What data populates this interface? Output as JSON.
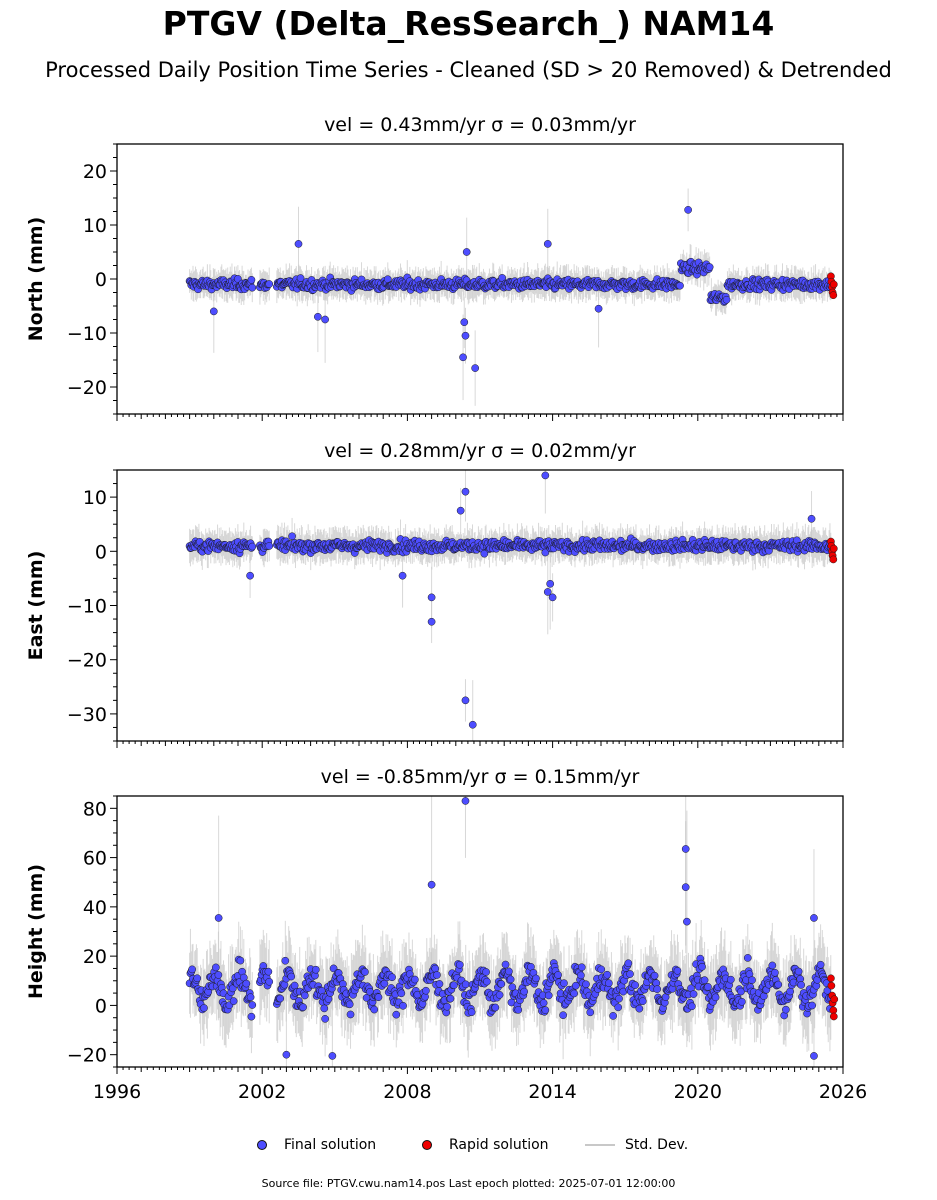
{
  "title": "PTGV (Delta_ResSearch_) NAM14",
  "subtitle": "Processed Daily Position Time Series - Cleaned (SD > 20 Removed) & Detrended",
  "legend": {
    "final": "Final solution",
    "rapid": "Rapid solution",
    "std": "Std. Dev."
  },
  "source": "Source file: PTGV.cwu.nam14.pos  Last epoch plotted: 2025-07-01 12:00:00",
  "colors": {
    "final": "#4d4dff",
    "rapid": "#ee0000",
    "std": "#c8c8c8",
    "edge": "#1a1a1a"
  },
  "chart_data": [
    {
      "type": "scatter",
      "panel": "north",
      "title": "vel = 0.43mm/yr   σ = 0.03mm/yr",
      "ylabel": "North (mm)",
      "xlim": [
        1996,
        2026
      ],
      "ylim": [
        -25,
        25
      ],
      "yticks": [
        -20,
        -10,
        0,
        10,
        20
      ],
      "xticks": [
        1996,
        2002,
        2008,
        2014,
        2020,
        2026
      ],
      "data_span": [
        1999.0,
        2025.5
      ],
      "level_segments": [
        {
          "from": 1999.0,
          "to": 2019.3,
          "mean": -1.0
        },
        {
          "from": 2019.3,
          "to": 2020.5,
          "mean": 2.0
        },
        {
          "from": 2020.5,
          "to": 2021.2,
          "mean": -3.5
        },
        {
          "from": 2021.2,
          "to": 2025.5,
          "mean": -1.0
        }
      ],
      "noise": 1.2,
      "outliers": [
        [
          2003.5,
          6.5
        ],
        [
          2004.6,
          -7.5
        ],
        [
          2004.3,
          -7
        ],
        [
          2010.3,
          -14.5
        ],
        [
          2010.4,
          -10.5
        ],
        [
          2010.35,
          -8
        ],
        [
          2010.45,
          5
        ],
        [
          2010.8,
          -16.5
        ],
        [
          2013.8,
          6.5
        ],
        [
          2019.6,
          12.8
        ],
        [
          2015.9,
          -5.5
        ],
        [
          2000.0,
          -6
        ]
      ],
      "rapid": [
        [
          2025.5,
          0.5
        ],
        [
          2025.52,
          -0.5
        ],
        [
          2025.55,
          -1.5
        ],
        [
          2025.57,
          -2.5
        ],
        [
          2025.6,
          -3
        ],
        [
          2025.62,
          -1
        ]
      ]
    },
    {
      "type": "scatter",
      "panel": "east",
      "title": "vel = 0.28mm/yr   σ = 0.02mm/yr",
      "ylabel": "East (mm)",
      "xlim": [
        1996,
        2026
      ],
      "ylim": [
        -35,
        15
      ],
      "yticks": [
        -30,
        -20,
        -10,
        0,
        10
      ],
      "xticks": [
        1996,
        2002,
        2008,
        2014,
        2020,
        2026
      ],
      "data_span": [
        1999.0,
        2025.5
      ],
      "level_segments": [
        {
          "from": 1999.0,
          "to": 2025.5,
          "mean": 1.0
        }
      ],
      "noise": 1.3,
      "outliers": [
        [
          2010.4,
          11
        ],
        [
          2010.2,
          7.5
        ],
        [
          2013.7,
          14
        ],
        [
          2009.0,
          -13
        ],
        [
          2009.0,
          -8.5
        ],
        [
          2010.4,
          -27.5
        ],
        [
          2010.7,
          -32
        ],
        [
          2014.0,
          -8.5
        ],
        [
          2013.9,
          -6
        ],
        [
          2013.8,
          -7.5
        ],
        [
          2001.5,
          -4.5
        ],
        [
          2007.8,
          -4.5
        ],
        [
          2024.7,
          6
        ]
      ],
      "rapid": [
        [
          2025.5,
          1.8
        ],
        [
          2025.52,
          1
        ],
        [
          2025.55,
          0
        ],
        [
          2025.57,
          -0.8
        ],
        [
          2025.6,
          -1.5
        ],
        [
          2025.62,
          0.5
        ]
      ]
    },
    {
      "type": "scatter",
      "panel": "height",
      "title": "vel = -0.85mm/yr   σ = 0.15mm/yr",
      "ylabel": "Height (mm)",
      "xlim": [
        1996,
        2026
      ],
      "ylim": [
        -25,
        85
      ],
      "yticks": [
        -20,
        0,
        20,
        40,
        60,
        80
      ],
      "xticks": [
        1996,
        2002,
        2008,
        2014,
        2020,
        2026
      ],
      "xticklabels": [
        "1996",
        "2002",
        "2008",
        "2014",
        "2020",
        "2026"
      ],
      "data_span": [
        1999.0,
        2025.5
      ],
      "level_segments": [
        {
          "from": 1999.0,
          "to": 2025.5,
          "mean": 7.0
        }
      ],
      "noise": 6.5,
      "seasonal_amplitude": 6.0,
      "outliers": [
        [
          2010.4,
          83
        ],
        [
          2009.0,
          49
        ],
        [
          2019.5,
          63.5
        ],
        [
          2019.5,
          48
        ],
        [
          2019.55,
          34
        ],
        [
          2000.2,
          35.5
        ],
        [
          2003.0,
          -20
        ],
        [
          2004.9,
          -20.5
        ],
        [
          2024.8,
          35.5
        ],
        [
          2024.8,
          -20.5
        ]
      ],
      "rapid": [
        [
          2025.5,
          11
        ],
        [
          2025.52,
          8
        ],
        [
          2025.55,
          4
        ],
        [
          2025.57,
          1
        ],
        [
          2025.6,
          -2
        ],
        [
          2025.62,
          -4.5
        ],
        [
          2025.64,
          2.5
        ]
      ]
    }
  ]
}
